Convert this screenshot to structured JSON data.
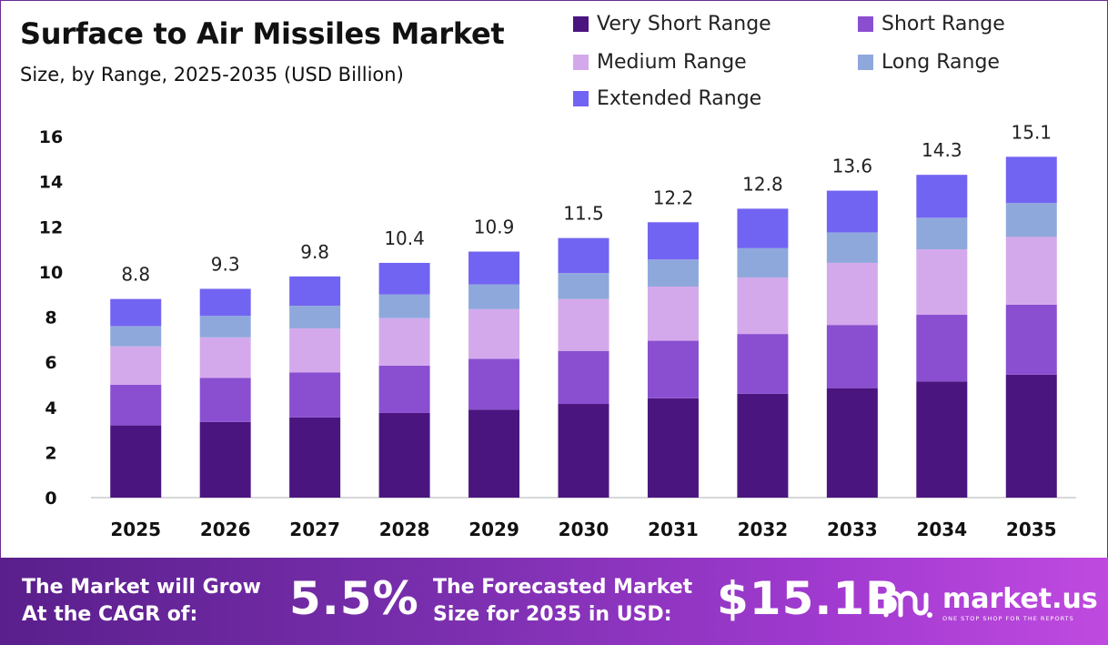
{
  "header": {
    "title": "Surface to Air Missiles Market",
    "subtitle": "Size, by Range, 2025-2035 (USD Billion)"
  },
  "colors": {
    "very_short": "#4b1580",
    "short": "#8a4fd0",
    "medium": "#d4a9ec",
    "long": "#8fa8dc",
    "extended": "#7264f2",
    "axis": "#cccccc"
  },
  "chart_data": {
    "type": "bar",
    "stacked": true,
    "categories": [
      "2025",
      "2026",
      "2027",
      "2028",
      "2029",
      "2030",
      "2031",
      "2032",
      "2033",
      "2034",
      "2035"
    ],
    "series": [
      {
        "name": "Very Short Range",
        "values": [
          3.2,
          3.35,
          3.55,
          3.75,
          3.9,
          4.15,
          4.4,
          4.6,
          4.85,
          5.15,
          5.45
        ]
      },
      {
        "name": "Short Range",
        "values": [
          1.8,
          1.95,
          2.0,
          2.1,
          2.25,
          2.35,
          2.55,
          2.65,
          2.8,
          2.95,
          3.1
        ]
      },
      {
        "name": "Medium Range",
        "values": [
          1.7,
          1.8,
          1.95,
          2.1,
          2.2,
          2.3,
          2.4,
          2.5,
          2.75,
          2.9,
          3.0
        ]
      },
      {
        "name": "Long Range",
        "values": [
          0.9,
          0.95,
          1.0,
          1.05,
          1.1,
          1.15,
          1.2,
          1.3,
          1.35,
          1.4,
          1.5
        ]
      },
      {
        "name": "Extended Range",
        "values": [
          1.2,
          1.2,
          1.3,
          1.4,
          1.45,
          1.55,
          1.65,
          1.75,
          1.85,
          1.9,
          2.05
        ]
      }
    ],
    "totals": [
      "8.8",
      "9.3",
      "9.8",
      "10.4",
      "10.9",
      "11.5",
      "12.2",
      "12.8",
      "13.6",
      "14.3",
      "15.1"
    ],
    "total_values": [
      8.8,
      9.3,
      9.8,
      10.4,
      10.9,
      11.5,
      12.2,
      12.8,
      13.6,
      14.3,
      15.1
    ],
    "yticks": [
      "0",
      "2",
      "4",
      "6",
      "8",
      "10",
      "12",
      "14",
      "16"
    ],
    "ylim": [
      0,
      16
    ],
    "legend_position": "top-right",
    "grid": false
  },
  "footer": {
    "cagr_label_line1": "The Market will Grow",
    "cagr_label_line2": "At the CAGR of:",
    "cagr_value": "5.5%",
    "forecast_label_line1": "The Forecasted Market",
    "forecast_label_line2": "Size for 2035 in USD:",
    "forecast_value": "$15.1B",
    "logo_name": "market.us",
    "logo_tagline": "ONE STOP SHOP FOR THE REPORTS"
  }
}
